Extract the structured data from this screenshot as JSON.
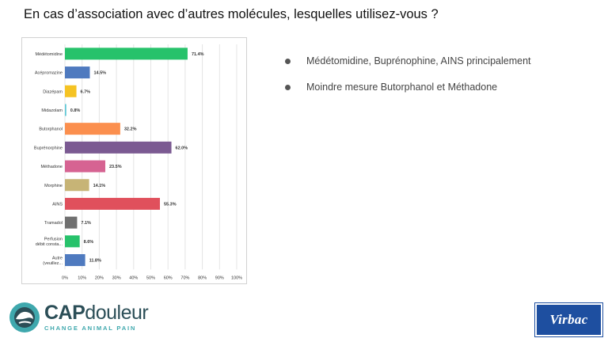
{
  "slide": {
    "title": "En cas d’association avec d’autres molécules, lesquelles utilisez-vous ?"
  },
  "bullets": [
    "Médétomidine, Buprénophine, AINS principalement",
    "Moindre mesure Butorphanol et Méthadone"
  ],
  "logos": {
    "cap_name_part1": "CAP",
    "cap_name_part2": "douleur",
    "cap_tagline": "CHANGE ANIMAL PAIN",
    "virbac": "Virbac"
  },
  "colors": {
    "bullet": "#555555",
    "virbac_blue": "#1e4fa0",
    "cap_teal": "#3fa8ad"
  },
  "chart_data": {
    "type": "bar",
    "orientation": "horizontal",
    "categories": [
      [
        "Médétomidine"
      ],
      [
        "Acépromazine"
      ],
      [
        "Diazépam"
      ],
      [
        "Midazolam"
      ],
      [
        "Butorphanol"
      ],
      [
        "Buprénorphine"
      ],
      [
        "Méthadone"
      ],
      [
        "Morphine"
      ],
      [
        "AINS"
      ],
      [
        "Tramadol"
      ],
      [
        "Perfusion",
        "débit consta..."
      ],
      [
        "Autre",
        "(veuillez..."
      ]
    ],
    "values": [
      71.4,
      14.5,
      6.7,
      0.8,
      32.2,
      62.0,
      23.5,
      14.1,
      55.3,
      7.1,
      8.6,
      11.8
    ],
    "value_labels": [
      "71.4%",
      "14.5%",
      "6.7%",
      "0.8%",
      "32.2%",
      "62.0%",
      "23.5%",
      "14.1%",
      "55.3%",
      "7.1%",
      "8.6%",
      "11.8%"
    ],
    "colors": [
      "#27c26b",
      "#4f7abf",
      "#f5c323",
      "#5fc8d6",
      "#fb8f4e",
      "#7b5a92",
      "#d66392",
      "#c7b476",
      "#e0505c",
      "#707070",
      "#27c26b",
      "#4f7abf"
    ],
    "xlim": [
      0,
      100
    ],
    "xticks": [
      "0%",
      "10%",
      "20%",
      "30%",
      "40%",
      "50%",
      "60%",
      "70%",
      "80%",
      "90%",
      "100%"
    ],
    "grid": true
  }
}
